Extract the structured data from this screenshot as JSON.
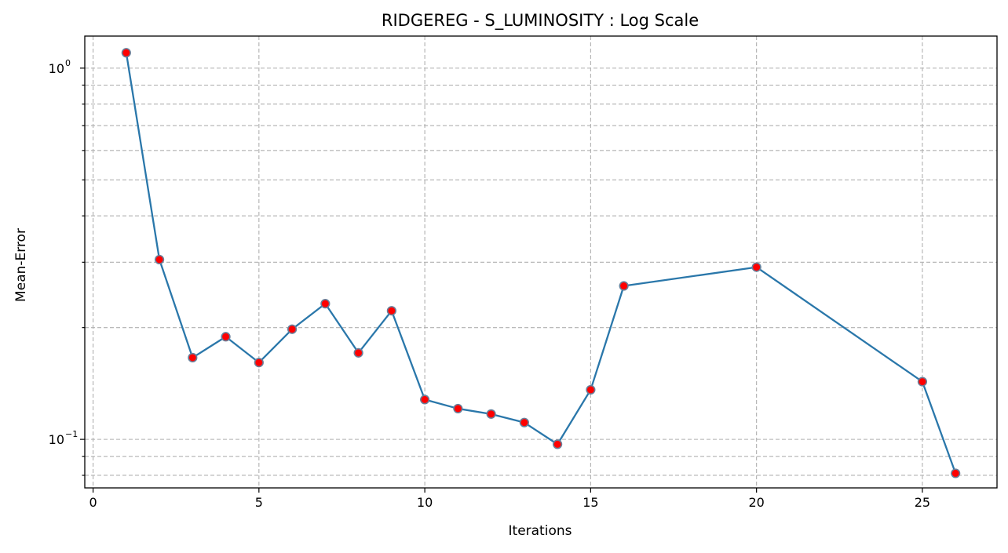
{
  "chart_data": {
    "type": "line",
    "title": "RIDGEREG - S_LUMINOSITY : Log Scale",
    "xlabel": "Iterations",
    "ylabel": "Mean-Error",
    "yscale": "log",
    "xlim": [
      -0.25,
      27.25
    ],
    "ylim": [
      0.074,
      1.22
    ],
    "xticks": [
      0,
      5,
      10,
      15,
      20,
      25
    ],
    "yticks": [
      {
        "value": 1.0,
        "base": "10",
        "exp": "0"
      },
      {
        "value": 0.1,
        "base": "10",
        "exp": "−1"
      }
    ],
    "y_minor_ticks": [
      0.08,
      0.09,
      0.2,
      0.3,
      0.4,
      0.5,
      0.6,
      0.7,
      0.8,
      0.9
    ],
    "grid": true,
    "line_color": "#2a77aa",
    "marker_face_color": "#ff0000",
    "marker_edge_color": "#6a7f99",
    "series": [
      {
        "x": [
          1,
          2,
          3,
          4,
          5,
          6,
          7,
          8,
          9,
          10,
          11,
          12,
          13,
          14,
          15,
          16,
          20,
          25,
          26
        ],
        "values": [
          1.1,
          0.305,
          0.166,
          0.189,
          0.161,
          0.198,
          0.232,
          0.171,
          0.222,
          0.128,
          0.121,
          0.117,
          0.111,
          0.097,
          0.136,
          0.259,
          0.291,
          0.143,
          0.081
        ]
      }
    ]
  }
}
